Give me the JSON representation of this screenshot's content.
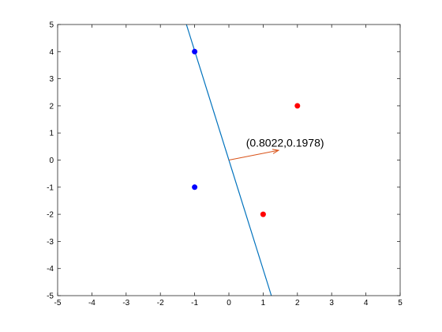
{
  "chart_data": {
    "type": "scatter",
    "title": "",
    "xlabel": "",
    "ylabel": "",
    "xlim": [
      -5,
      5
    ],
    "ylim": [
      -5,
      5
    ],
    "grid": false,
    "x_ticks": [
      "-5",
      "-4",
      "-3",
      "-2",
      "-1",
      "0",
      "1",
      "2",
      "3",
      "4",
      "5"
    ],
    "y_ticks": [
      "5",
      "4",
      "3",
      "2",
      "1",
      "0",
      "-1",
      "-2",
      "-3",
      "-4",
      "-5"
    ],
    "series": [
      {
        "color": "#0000ff",
        "points": [
          [
            -1,
            4
          ],
          [
            -1,
            -1
          ]
        ]
      },
      {
        "color": "#ff0000",
        "points": [
          [
            2,
            2
          ],
          [
            1,
            -2
          ]
        ]
      }
    ],
    "decision_line": {
      "color": "#0072bd",
      "points": [
        [
          -1.24,
          5
        ],
        [
          1.24,
          -5
        ]
      ]
    },
    "arrow": {
      "color": "#d95319",
      "from": [
        0,
        0
      ],
      "to": [
        1.45,
        0.36
      ]
    },
    "annotation": {
      "text": "(0.8022,0.1978)",
      "at": [
        0.5,
        0.5
      ]
    }
  }
}
